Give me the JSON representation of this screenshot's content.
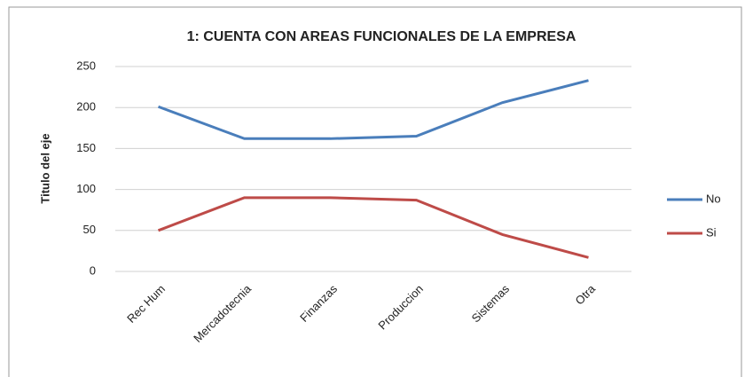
{
  "chart_data": {
    "type": "line",
    "title": "1: CUENTA CON AREAS FUNCIONALES DE LA EMPRESA",
    "y_label": "Titulo del eje",
    "categories": [
      "Rec Hum",
      "Mercadotecnia",
      "Finanzas",
      "Produccion",
      "Sistemas",
      "Otra"
    ],
    "series": [
      {
        "name": "No",
        "color": "#4a7ebb",
        "values": [
          201,
          162,
          162,
          165,
          206,
          233
        ]
      },
      {
        "name": "Si",
        "color": "#be4b48",
        "values": [
          50,
          90,
          90,
          87,
          45,
          17
        ]
      }
    ],
    "ylim": [
      0,
      250
    ],
    "yticks": [
      0,
      50,
      100,
      150,
      200,
      250
    ],
    "grid": true,
    "legend": "right"
  }
}
